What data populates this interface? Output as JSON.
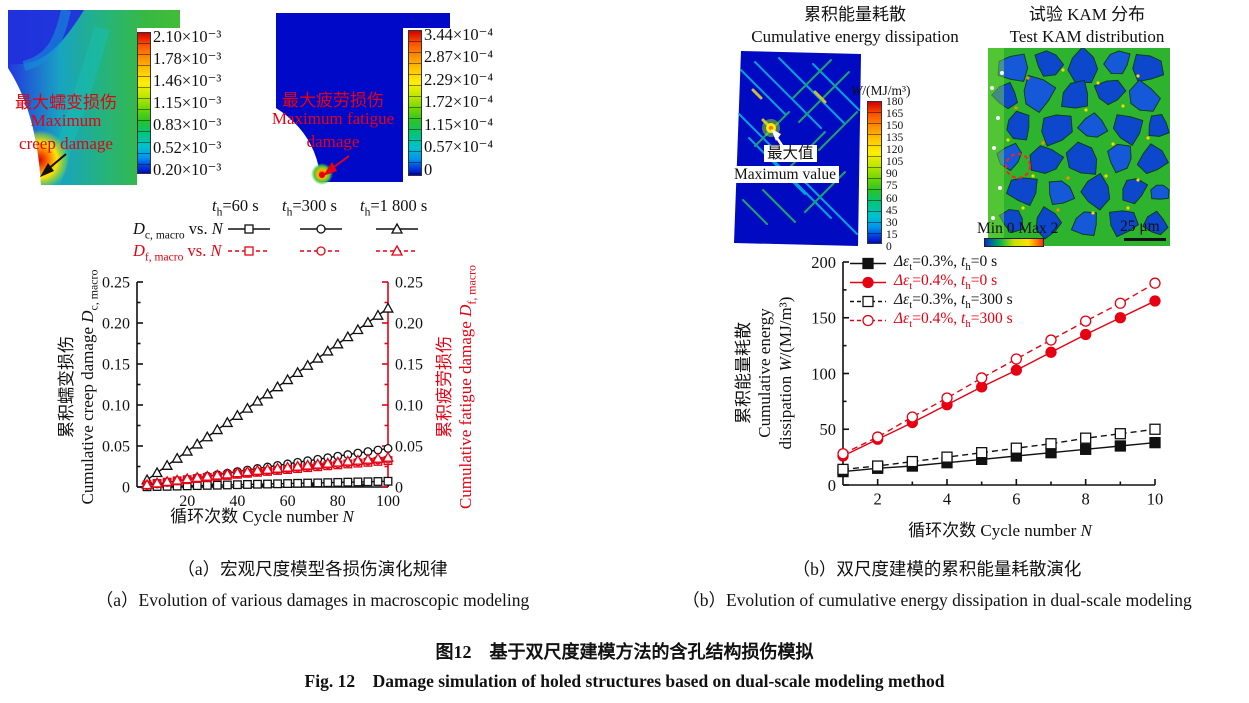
{
  "accent_red": "#e60012",
  "panel_a": {
    "creep": {
      "label_zh": "最大蠕变损伤",
      "label_en_1": "Maximum",
      "label_en_2": "creep damage",
      "colorbar_ticks": [
        "2.10×10⁻³",
        "1.78×10⁻³",
        "1.46×10⁻³",
        "1.15×10⁻³",
        "0.83×10⁻³",
        "0.52×10⁻³",
        "0.20×10⁻³"
      ]
    },
    "fatigue": {
      "label_zh": "最大疲劳损伤",
      "label_en_1": "Maximum fatigue",
      "label_en_2": "damage",
      "colorbar_ticks": [
        "3.44×10⁻⁴",
        "2.87×10⁻⁴",
        "2.29×10⁻⁴",
        "1.72×10⁻⁴",
        "1.15×10⁻⁴",
        "0.57×10⁻⁴",
        "0"
      ]
    },
    "caption_zh": "（a）宏观尺度模型各损伤演化规律",
    "caption_en": "（a）Evolution of various damages in macroscopic modeling"
  },
  "panel_b": {
    "energy_title_zh": "累积能量耗散",
    "energy_title_en": "Cumulative energy dissipation",
    "kam_title_zh": "试验 KAM 分布",
    "kam_title_en": "Test KAM distribution",
    "energy": {
      "colorbar_var": "W",
      "colorbar_units": "/(MJ/m³)",
      "colorbar_ticks": [
        "180",
        "165",
        "150",
        "135",
        "120",
        "105",
        "90",
        "75",
        "60",
        "45",
        "30",
        "15",
        "0"
      ],
      "max_zh": "最大值",
      "max_en": "Maximum value"
    },
    "kam": {
      "range_label": "Min 0 Max 2",
      "scale_label": "25 μm"
    },
    "caption_zh": "（b）双尺度建模的累积能量耗散演化",
    "caption_en": "（b）Evolution of cumulative energy dissipation in dual-scale modeling"
  },
  "figure": {
    "title_zh": "图12　基于双尺度建模方法的含孔结构损伤模拟",
    "title_en": "Fig. 12　Damage simulation of holed structures based on dual-scale modeling method"
  },
  "chart_data": [
    {
      "type": "line",
      "title": "",
      "xlabel_zh": "循环次数",
      "xlabel_en": "Cycle number",
      "xlabel_var": "N",
      "ylabel_left_zh": "累积蠕变损伤",
      "ylabel_left_en": "Cumulative creep damage",
      "ylabel_left_var": "D",
      "ylabel_left_sub": "c, macro",
      "ylabel_right_zh": "累积疲劳损伤",
      "ylabel_right_en": "Cumulative fatigue damage",
      "ylabel_right_var": "D",
      "ylabel_right_sub": "f, macro",
      "xlim": [
        0,
        100
      ],
      "ylim": [
        0,
        0.25
      ],
      "xticks": [
        20,
        40,
        60,
        80,
        100
      ],
      "xticks_minor": [
        10,
        30,
        50,
        70,
        90
      ],
      "yticks_v": [
        0,
        0.05,
        0.1,
        0.15,
        0.2,
        0.25
      ],
      "yticks_lab": [
        "0",
        "0.05",
        "0.10",
        "0.15",
        "0.20",
        "0.25"
      ],
      "yticks_minor": [
        0.025,
        0.075,
        0.125,
        0.175,
        0.225
      ],
      "legend_cols": [
        {
          "v": "t",
          "sub": "h",
          "rest": "=60 s"
        },
        {
          "v": "t",
          "sub": "h",
          "rest": "=300 s"
        },
        {
          "v": "t",
          "sub": "h",
          "rest": "=1 800 s"
        }
      ],
      "legend_rows": [
        {
          "v": "D",
          "sub": "c, macro",
          "mid": " vs. ",
          "var2": "N"
        },
        {
          "v": "D",
          "sub": "f, macro",
          "mid": " vs. ",
          "var2": "N"
        }
      ],
      "x": [
        4,
        8,
        12,
        16,
        20,
        24,
        28,
        32,
        36,
        40,
        44,
        48,
        52,
        56,
        60,
        64,
        68,
        72,
        76,
        80,
        84,
        88,
        92,
        96,
        100
      ],
      "series": [
        {
          "name": "Dc,macro th=60 s",
          "color": "#111111",
          "dash": "solid",
          "marker": "square",
          "filled": false,
          "values": [
            0.0003,
            0.0006,
            0.0008,
            0.0011,
            0.0014,
            0.0017,
            0.002,
            0.0022,
            0.0025,
            0.0028,
            0.0031,
            0.0034,
            0.0036,
            0.0039,
            0.0042,
            0.0045,
            0.0048,
            0.005,
            0.0053,
            0.0056,
            0.0059,
            0.0062,
            0.0064,
            0.0067,
            0.007
          ]
        },
        {
          "name": "Dc,macro th=300 s",
          "color": "#111111",
          "dash": "solid",
          "marker": "circle",
          "filled": false,
          "values": [
            0.0019,
            0.0038,
            0.0056,
            0.0075,
            0.0094,
            0.0113,
            0.0132,
            0.015,
            0.0169,
            0.0188,
            0.0207,
            0.0226,
            0.0244,
            0.0263,
            0.0282,
            0.0301,
            0.032,
            0.0338,
            0.0357,
            0.0376,
            0.0395,
            0.0414,
            0.0432,
            0.0451,
            0.047
          ]
        },
        {
          "name": "Dc,macro th=1 800 s",
          "color": "#111111",
          "dash": "solid",
          "marker": "triangle",
          "filled": false,
          "values": [
            0.0087,
            0.0174,
            0.0262,
            0.0349,
            0.0436,
            0.0523,
            0.061,
            0.0698,
            0.0785,
            0.0872,
            0.0959,
            0.1046,
            0.1134,
            0.1221,
            0.1308,
            0.1395,
            0.1482,
            0.157,
            0.1657,
            0.1744,
            0.1831,
            0.1918,
            0.2006,
            0.2093,
            0.218
          ]
        },
        {
          "name": "Df,macro th=60 s",
          "color": "#e60012",
          "dash": "dashed",
          "marker": "square",
          "filled": false,
          "values": [
            0.0025,
            0.0043,
            0.0059,
            0.0075,
            0.0089,
            0.0103,
            0.0116,
            0.0129,
            0.0141,
            0.0155,
            0.0167,
            0.0179,
            0.019,
            0.0202,
            0.0213,
            0.0225,
            0.0236,
            0.0247,
            0.0259,
            0.027,
            0.0281,
            0.0291,
            0.0301,
            0.0312,
            0.0322
          ]
        },
        {
          "name": "Df,macro th=300 s",
          "color": "#e60012",
          "dash": "dashed",
          "marker": "circle",
          "filled": false,
          "values": [
            0.0026,
            0.0046,
            0.0062,
            0.0079,
            0.0094,
            0.0109,
            0.0122,
            0.0136,
            0.0148,
            0.0163,
            0.0176,
            0.0189,
            0.0201,
            0.0213,
            0.0225,
            0.0238,
            0.0249,
            0.0261,
            0.0273,
            0.0284,
            0.0296,
            0.0307,
            0.0317,
            0.0329,
            0.034
          ]
        },
        {
          "name": "Df,macro th=1 800 s",
          "color": "#e60012",
          "dash": "dashed",
          "marker": "triangle",
          "filled": false,
          "values": [
            0.0028,
            0.0048,
            0.0066,
            0.0083,
            0.01,
            0.0115,
            0.013,
            0.0144,
            0.0158,
            0.0173,
            0.0186,
            0.0201,
            0.0213,
            0.0227,
            0.0239,
            0.0252,
            0.0265,
            0.0277,
            0.0289,
            0.0302,
            0.0314,
            0.0325,
            0.0337,
            0.0349,
            0.0361
          ]
        }
      ]
    },
    {
      "type": "line",
      "title": "",
      "xlabel_zh": "循环次数",
      "xlabel_en": "Cycle number",
      "xlabel_var": "N",
      "ylabel_zh": "累积能量耗散",
      "ylabel_en1": "Cumulative energy",
      "ylabel_en2_pre": "dissipation ",
      "ylabel_var": "W",
      "ylabel_units": "/(MJ/m³)",
      "xlim": [
        1,
        10
      ],
      "ylim": [
        0,
        200
      ],
      "xticks": [
        2,
        4,
        6,
        8,
        10
      ],
      "xticks_minor": [
        3,
        5,
        7,
        9
      ],
      "yticks_v": [
        0,
        50,
        100,
        150,
        200
      ],
      "yticks_lab": [
        "0",
        "50",
        "100",
        "150",
        "200"
      ],
      "yticks_minor": [
        25,
        75,
        125,
        175
      ],
      "x": [
        1,
        2,
        3,
        4,
        5,
        6,
        7,
        8,
        9,
        10
      ],
      "series": [
        {
          "name": "strain 0.3% hold 0 s",
          "color": "#111111",
          "dash": "solid",
          "marker": "square",
          "filled": true,
          "label": {
            "a": "Δε",
            "asub": "t",
            "b": "=0.3%, ",
            "c": "t",
            "csub": "h",
            "d": "=0 s"
          },
          "values": [
            12,
            15,
            17,
            20,
            23,
            26,
            29,
            32,
            35,
            38
          ]
        },
        {
          "name": "strain 0.4% hold 0 s",
          "color": "#e60012",
          "dash": "solid",
          "marker": "circle",
          "filled": true,
          "label": {
            "a": "Δε",
            "asub": "t",
            "b": "=0.4%, ",
            "c": "t",
            "csub": "h",
            "d": "=0 s"
          },
          "values": [
            26,
            41,
            56,
            72,
            88,
            103,
            119,
            135,
            150,
            165
          ]
        },
        {
          "name": "strain 0.3% hold 300 s",
          "color": "#111111",
          "dash": "dashed",
          "marker": "square",
          "filled": false,
          "label": {
            "a": "Δε",
            "asub": "t",
            "b": "=0.3%, ",
            "c": "t",
            "csub": "h",
            "d": "=300 s"
          },
          "values": [
            14,
            17,
            21,
            25,
            29,
            33,
            37,
            42,
            46,
            50
          ]
        },
        {
          "name": "strain 0.4% hold 300 s",
          "color": "#e60012",
          "dash": "dashed",
          "marker": "circle",
          "filled": false,
          "label": {
            "a": "Δε",
            "asub": "t",
            "b": "=0.4%, ",
            "c": "t",
            "csub": "h",
            "d": "=300 s"
          },
          "values": [
            28,
            43,
            61,
            78,
            96,
            113,
            130,
            147,
            163,
            181
          ]
        }
      ]
    }
  ]
}
